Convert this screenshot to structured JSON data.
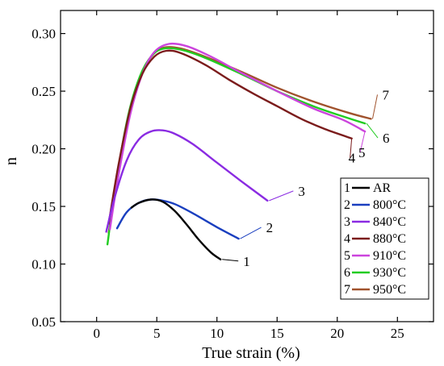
{
  "chart_data": {
    "type": "line",
    "title": "",
    "xlabel": "True strain (%)",
    "ylabel": "n",
    "xlim": [
      -3,
      28
    ],
    "ylim": [
      0.05,
      0.32
    ],
    "xticks": [
      "0",
      "5",
      "10",
      "15",
      "20",
      "25"
    ],
    "yticks": [
      "0.05",
      "0.10",
      "0.15",
      "0.20",
      "0.25",
      "0.30"
    ],
    "legend_position": "bottom-right",
    "grid": false,
    "series": [
      {
        "name": "AR",
        "number": "1",
        "color": "#000000",
        "x": [
          2.9,
          3.5,
          4.5,
          5.5,
          6.5,
          7.5,
          8.5,
          9.5,
          10.3
        ],
        "y": [
          0.149,
          0.153,
          0.156,
          0.154,
          0.146,
          0.134,
          0.121,
          0.11,
          0.104
        ]
      },
      {
        "name": "800°C",
        "number": "2",
        "color": "#1a3fbf",
        "x": [
          1.7,
          2.5,
          3.5,
          4.5,
          5.5,
          6.5,
          8.0,
          10.0,
          11.8
        ],
        "y": [
          0.131,
          0.145,
          0.153,
          0.156,
          0.155,
          0.152,
          0.144,
          0.132,
          0.122
        ]
      },
      {
        "name": "840°C",
        "number": "3",
        "color": "#8a2be2",
        "x": [
          0.8,
          1.5,
          2.5,
          3.5,
          4.5,
          5.5,
          6.5,
          8.0,
          10.0,
          12.0,
          14.2
        ],
        "y": [
          0.128,
          0.158,
          0.19,
          0.208,
          0.215,
          0.216,
          0.213,
          0.204,
          0.188,
          0.172,
          0.155
        ]
      },
      {
        "name": "880°C",
        "number": "4",
        "color": "#7b1c1c",
        "x": [
          1.0,
          1.8,
          2.8,
          3.8,
          4.8,
          5.8,
          7.0,
          9.0,
          11.0,
          13.0,
          15.0,
          17.0,
          19.0,
          21.2
        ],
        "y": [
          0.135,
          0.185,
          0.235,
          0.265,
          0.28,
          0.285,
          0.283,
          0.273,
          0.26,
          0.248,
          0.237,
          0.226,
          0.217,
          0.209
        ]
      },
      {
        "name": "910°C",
        "number": "5",
        "color": "#cc44dd",
        "x": [
          1.1,
          1.8,
          2.8,
          3.8,
          4.8,
          6.0,
          7.5,
          9.5,
          12.0,
          15.0,
          18.0,
          20.5,
          22.3
        ],
        "y": [
          0.13,
          0.176,
          0.23,
          0.265,
          0.284,
          0.291,
          0.289,
          0.28,
          0.266,
          0.25,
          0.235,
          0.225,
          0.215
        ]
      },
      {
        "name": "930°C",
        "number": "6",
        "color": "#22cc22",
        "x": [
          0.9,
          1.6,
          2.6,
          3.6,
          4.6,
          5.6,
          7.0,
          9.0,
          12.0,
          15.0,
          18.0,
          20.5,
          22.3
        ],
        "y": [
          0.117,
          0.17,
          0.228,
          0.263,
          0.281,
          0.287,
          0.286,
          0.279,
          0.265,
          0.25,
          0.237,
          0.228,
          0.222
        ]
      },
      {
        "name": "950°C",
        "number": "7",
        "color": "#a0522d",
        "x": [
          1.0,
          1.7,
          2.7,
          3.7,
          4.7,
          5.7,
          7.0,
          9.0,
          12.0,
          15.0,
          18.0,
          21.0,
          22.8
        ],
        "y": [
          0.127,
          0.172,
          0.23,
          0.265,
          0.282,
          0.288,
          0.287,
          0.28,
          0.267,
          0.253,
          0.241,
          0.231,
          0.226
        ]
      }
    ]
  }
}
